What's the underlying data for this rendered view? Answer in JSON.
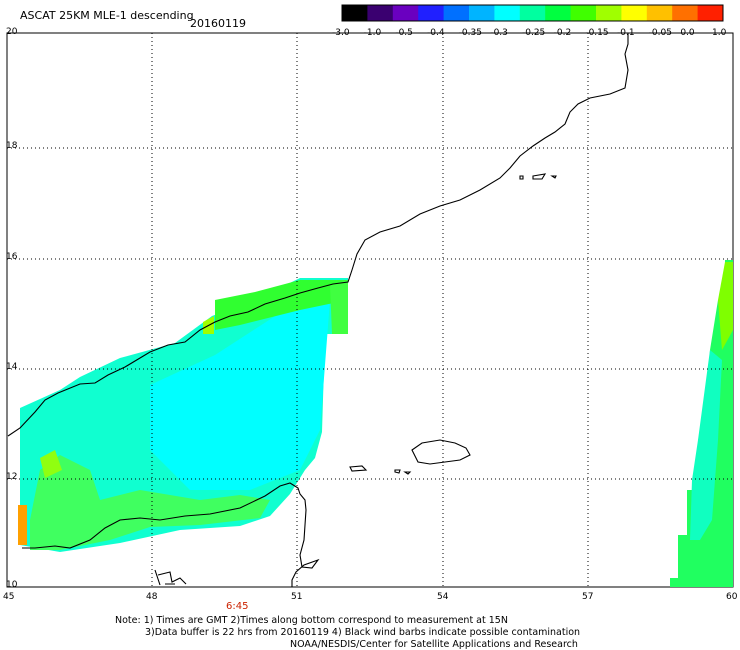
{
  "title": "ASCAT 25KM MLE-1 descending",
  "date": "20160119",
  "colorbar": {
    "labels": [
      "-3.0",
      "-1.0",
      "-0.5",
      "-0.4",
      "-0.35",
      "-0.3",
      "-0.25",
      "-0.2",
      "-0.15",
      "-0.1",
      "-0.05",
      "0.0",
      "1.0"
    ],
    "colors": [
      "#000000",
      "#3a0070",
      "#6a00c0",
      "#2020ff",
      "#0070ff",
      "#00b4ff",
      "#00ffff",
      "#00ffa0",
      "#00ff40",
      "#40ff00",
      "#a0ff00",
      "#ffff00",
      "#ffc000",
      "#ff7000",
      "#ff2000"
    ]
  },
  "lat_labels": [
    "20",
    "18",
    "16",
    "14",
    "12",
    "10"
  ],
  "lon_labels": [
    "45",
    "48",
    "51",
    "54",
    "57",
    "60"
  ],
  "pass_time": "6:45",
  "notes": {
    "line1": "Note: 1) Times are GMT 2)Times along bottom correspond to measurement at 15N",
    "line2": "3)Data buffer is 22 hrs from 20160119 4) Black wind barbs indicate possible contamination",
    "line3": "NOAA/NESDIS/Center for Satellite Applications and Research"
  },
  "map": {
    "lat_range": [
      10,
      20
    ],
    "lon_range": [
      45,
      60
    ],
    "swath_colors": {
      "cyan": "#00ffff",
      "aqua_green": "#00ffa8",
      "green": "#30ff30",
      "lime": "#7fff00",
      "orange": "#ffa000"
    },
    "coastline_color": "#000000",
    "grid": "dotted"
  }
}
